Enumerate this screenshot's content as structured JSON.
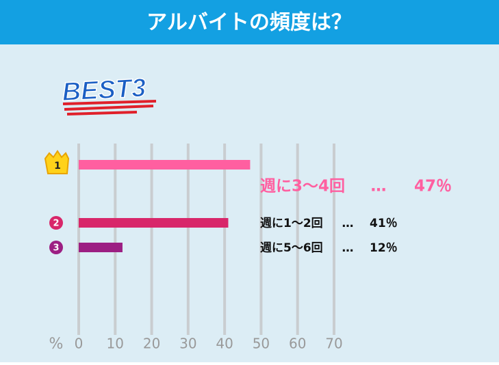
{
  "chart_data": {
    "type": "hbar",
    "title": "アルバイトの頻度は？",
    "badge": "BEST3",
    "ranks": [
      "1",
      "2",
      "3"
    ],
    "categories": [
      "週に3〜4回",
      "週に1〜2回",
      "週に5〜6回"
    ],
    "values": [
      47,
      41,
      12
    ],
    "value_labels": [
      "47％",
      "41％",
      "12％"
    ],
    "separator": "…",
    "colors": [
      "#ff5fa0",
      "#d8276a",
      "#9c1f83"
    ],
    "xlabel": "%",
    "xlim": [
      0,
      70
    ],
    "xticks": [
      0,
      10,
      20,
      30,
      40,
      50,
      60,
      70
    ],
    "grid": true
  }
}
